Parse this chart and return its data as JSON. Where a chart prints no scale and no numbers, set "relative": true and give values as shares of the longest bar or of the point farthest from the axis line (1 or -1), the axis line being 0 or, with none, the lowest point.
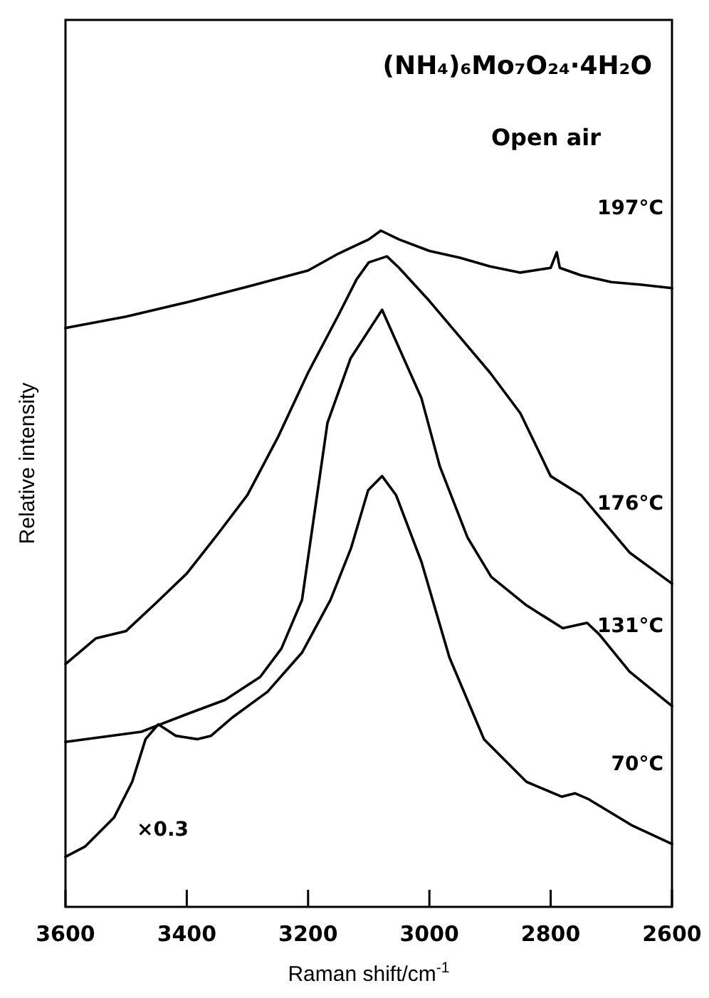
{
  "chart_data": {
    "type": "line",
    "title": "(NH₄)₆Mo₇O₂₄·4H₂O",
    "subtitle": "Open air",
    "xlabel": "Raman shift/cm$^{-1}$",
    "ylabel": "Relative intensity",
    "relative": true,
    "xlim": [
      3600,
      2600
    ],
    "xticks": [
      3600,
      3400,
      3200,
      3000,
      2800,
      2600
    ],
    "series": [
      {
        "name": "197°C",
        "color": "#000000",
        "x": [
          3600,
          3500,
          3400,
          3300,
          3200,
          3150,
          3100,
          3080,
          3050,
          3000,
          2950,
          2900,
          2850,
          2800,
          2790,
          2785,
          2750,
          2700,
          2650,
          2600
        ],
        "values": [
          0.856,
          0.873,
          0.894,
          0.917,
          0.941,
          0.966,
          0.987,
          1,
          0.987,
          0.97,
          0.96,
          0.947,
          0.938,
          0.945,
          0.968,
          0.945,
          0.934,
          0.924,
          0.92,
          0.915
        ]
      },
      {
        "name": "176°C",
        "color": "#000000",
        "x": [
          3600,
          3550,
          3500,
          3450,
          3400,
          3350,
          3300,
          3250,
          3200,
          3150,
          3120,
          3100,
          3070,
          3050,
          3000,
          2950,
          2900,
          2850,
          2800,
          2750,
          2670,
          2600
        ],
        "values": [
          0.359,
          0.397,
          0.408,
          0.45,
          0.493,
          0.55,
          0.609,
          0.694,
          0.79,
          0.875,
          0.928,
          0.953,
          0.962,
          0.945,
          0.896,
          0.843,
          0.79,
          0.73,
          0.637,
          0.609,
          0.524,
          0.478
        ]
      },
      {
        "name": "131°C",
        "color": "#000000",
        "x": [
          3600,
          3475,
          3400,
          3337,
          3279,
          3244,
          3210,
          3168,
          3130,
          3078,
          3013,
          2983,
          2937,
          2898,
          2840,
          2780,
          2740,
          2720,
          2670,
          2600
        ],
        "values": [
          0.244,
          0.259,
          0.285,
          0.306,
          0.34,
          0.382,
          0.454,
          0.716,
          0.811,
          0.883,
          0.752,
          0.652,
          0.546,
          0.488,
          0.446,
          0.412,
          0.42,
          0.403,
          0.348,
          0.297
        ]
      },
      {
        "name": "70°C",
        "color": "#000000",
        "x": [
          3600,
          3568,
          3520,
          3490,
          3468,
          3447,
          3418,
          3383,
          3360,
          3325,
          3267,
          3210,
          3163,
          3129,
          3101,
          3078,
          3055,
          3013,
          2967,
          2910,
          2840,
          2782,
          2760,
          2737,
          2667,
          2600
        ],
        "values": [
          0.074,
          0.089,
          0.132,
          0.185,
          0.248,
          0.27,
          0.253,
          0.248,
          0.253,
          0.28,
          0.318,
          0.376,
          0.454,
          0.531,
          0.616,
          0.637,
          0.609,
          0.51,
          0.369,
          0.248,
          0.185,
          0.163,
          0.168,
          0.159,
          0.121,
          0.093
        ]
      }
    ],
    "annotations": [
      "×0.3"
    ]
  }
}
